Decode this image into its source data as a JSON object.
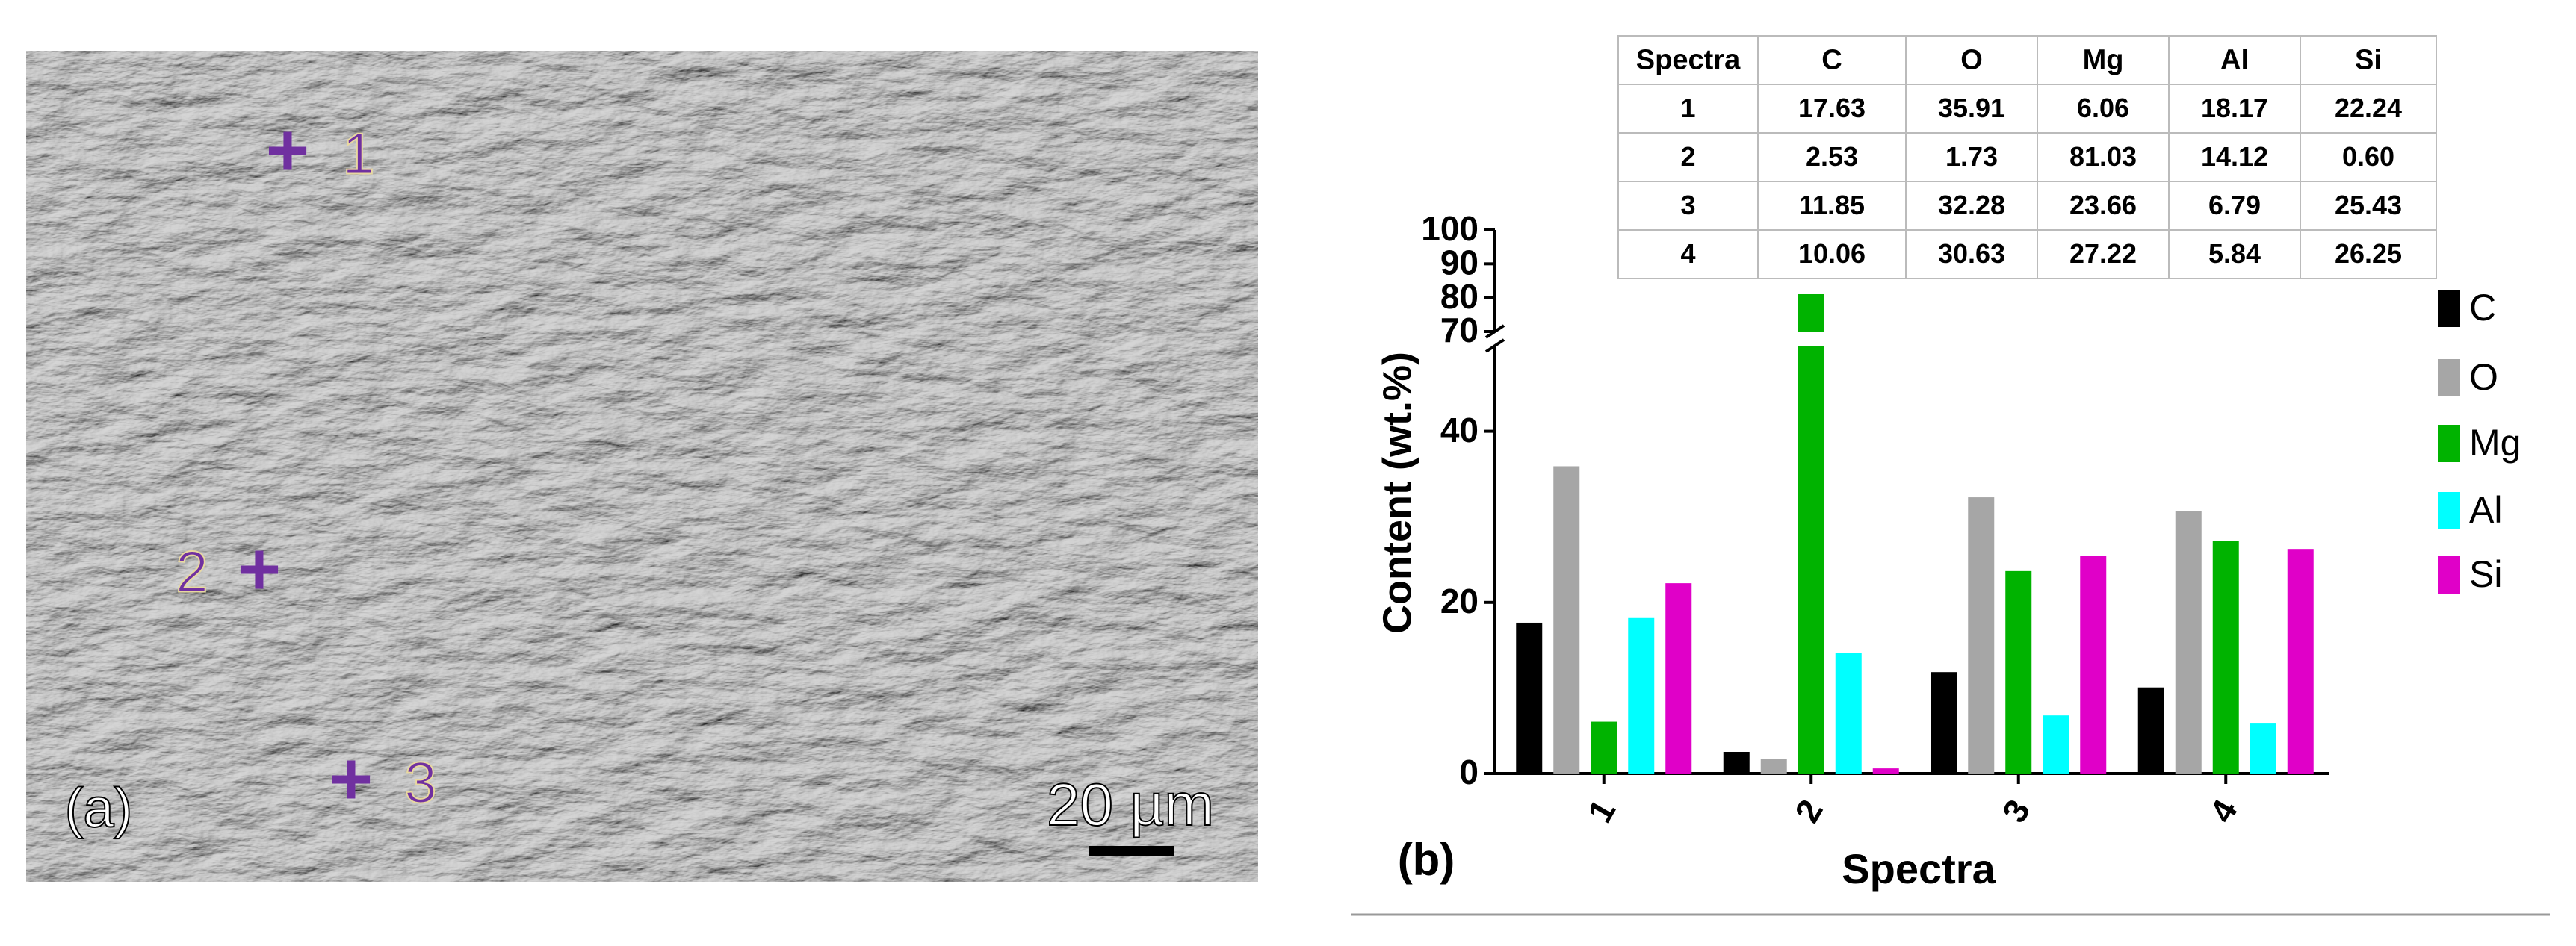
{
  "image": {
    "label": "(a)",
    "scale_bar": "20 µm",
    "points": [
      "1",
      "2",
      "3"
    ]
  },
  "table": {
    "header": [
      "Spectra",
      "C",
      "O",
      "Mg",
      "Al",
      "Si"
    ],
    "rows": [
      [
        "1",
        "17.63",
        "35.91",
        "6.06",
        "18.17",
        "22.24"
      ],
      [
        "2",
        "2.53",
        "1.73",
        "81.03",
        "14.12",
        "0.60"
      ],
      [
        "3",
        "11.85",
        "32.28",
        "23.66",
        "6.79",
        "25.43"
      ],
      [
        "4",
        "10.06",
        "30.63",
        "27.22",
        "5.84",
        "26.25"
      ]
    ]
  },
  "chart_data": {
    "type": "bar",
    "panel_label": "(b)",
    "x_label": "Spectra",
    "y_label": "Content (wt.%)",
    "categories": [
      "1",
      "2",
      "3",
      "4"
    ],
    "series": [
      {
        "name": "C",
        "color": "#000000",
        "values": [
          17.63,
          2.53,
          11.85,
          10.06
        ]
      },
      {
        "name": "O",
        "color": "#a6a6a6",
        "values": [
          35.91,
          1.73,
          32.28,
          30.63
        ]
      },
      {
        "name": "Mg",
        "color": "#00b300",
        "values": [
          6.06,
          81.03,
          23.66,
          27.22
        ]
      },
      {
        "name": "Al",
        "color": "#00ffff",
        "values": [
          18.17,
          14.12,
          6.79,
          5.84
        ]
      },
      {
        "name": "Si",
        "color": "#e000c8",
        "values": [
          22.24,
          0.6,
          25.43,
          26.25
        ]
      }
    ],
    "ylim": [
      0,
      100
    ],
    "ybreak": [
      50,
      70
    ],
    "yticks": [
      0,
      20,
      40,
      70,
      80,
      90,
      100
    ],
    "grid": false,
    "legend": "right"
  }
}
